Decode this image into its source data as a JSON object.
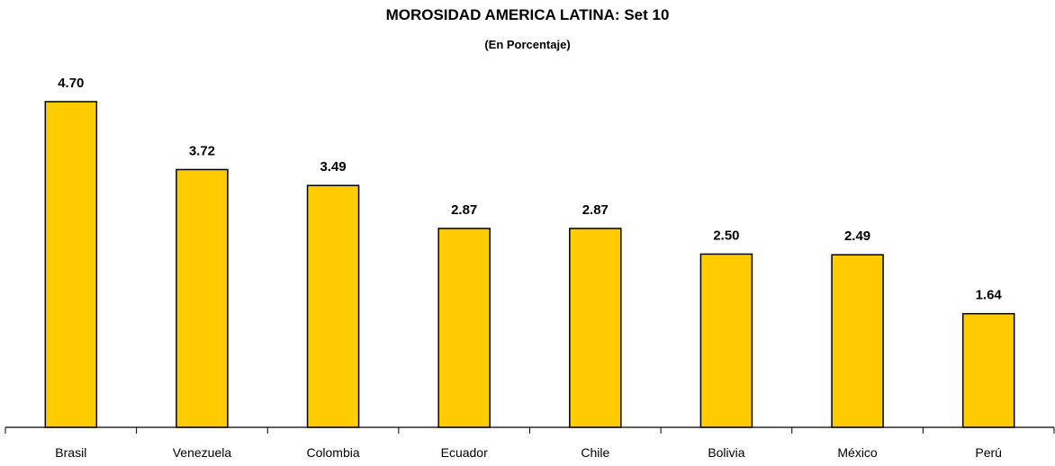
{
  "chart_data": {
    "type": "bar",
    "title": "MOROSIDAD AMERICA LATINA: Set 10",
    "subtitle": "(En Porcentaje)",
    "xlabel": "",
    "ylabel": "",
    "categories": [
      "Brasil",
      "Venezuela",
      "Colombia",
      "Ecuador",
      "Chile",
      "Bolivia",
      "México",
      "Perú"
    ],
    "values": [
      4.7,
      3.72,
      3.49,
      2.87,
      2.87,
      2.5,
      2.49,
      1.64
    ],
    "value_labels": [
      "4.70",
      "3.72",
      "3.49",
      "2.87",
      "2.87",
      "2.50",
      "2.49",
      "1.64"
    ],
    "ylim": [
      0,
      4.7
    ],
    "grid": false,
    "legend": "none",
    "colors": {
      "bar_fill": "#FFCC00",
      "bar_stroke": "#000000",
      "axis": "#000000",
      "text": "#000000"
    }
  }
}
